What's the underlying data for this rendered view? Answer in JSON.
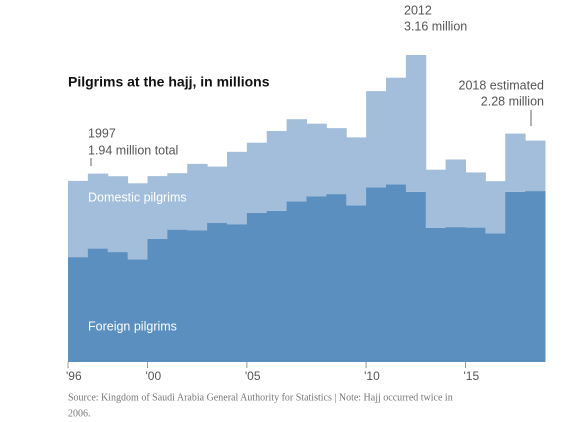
{
  "chart_data": {
    "type": "stacked-step-area",
    "title": "Pilgrims at the hajj, in millions",
    "categories": [
      "'96",
      null,
      null,
      null,
      "'00",
      null,
      null,
      null,
      null,
      "'05",
      null,
      null,
      null,
      null,
      null,
      "'10",
      null,
      null,
      null,
      null,
      "'15",
      null,
      null,
      null
    ],
    "series": [
      {
        "name": "Foreign pilgrims",
        "color": "#5b8fbf",
        "values": [
          1.08,
          1.168,
          1.132,
          1.057,
          1.267,
          1.363,
          1.354,
          1.431,
          1.419,
          1.534,
          1.557,
          1.654,
          1.707,
          1.729,
          1.613,
          1.799,
          1.828,
          1.752,
          1.38,
          1.389,
          1.384,
          1.325,
          1.752,
          1.76
        ]
      },
      {
        "name": "Domestic pilgrims",
        "color": "#a3bedb",
        "values": [
          0.785,
          0.772,
          0.781,
          0.783,
          0.647,
          0.581,
          0.686,
          0.581,
          0.745,
          0.724,
          0.821,
          0.846,
          0.747,
          0.679,
          0.7,
          0.99,
          1.099,
          1.409,
          0.6,
          0.696,
          0.568,
          0.537,
          0.6,
          0.52
        ]
      }
    ],
    "annotations": [
      "1997",
      "1.94 million total",
      "2012",
      "3.16 million",
      "2018 estimated",
      "2.28 million"
    ],
    "source": "Source: Kingdom of Saudi Arabia General Authority for Statistics | Note: Hajj occurred twice in",
    "source_line2": "2006."
  }
}
